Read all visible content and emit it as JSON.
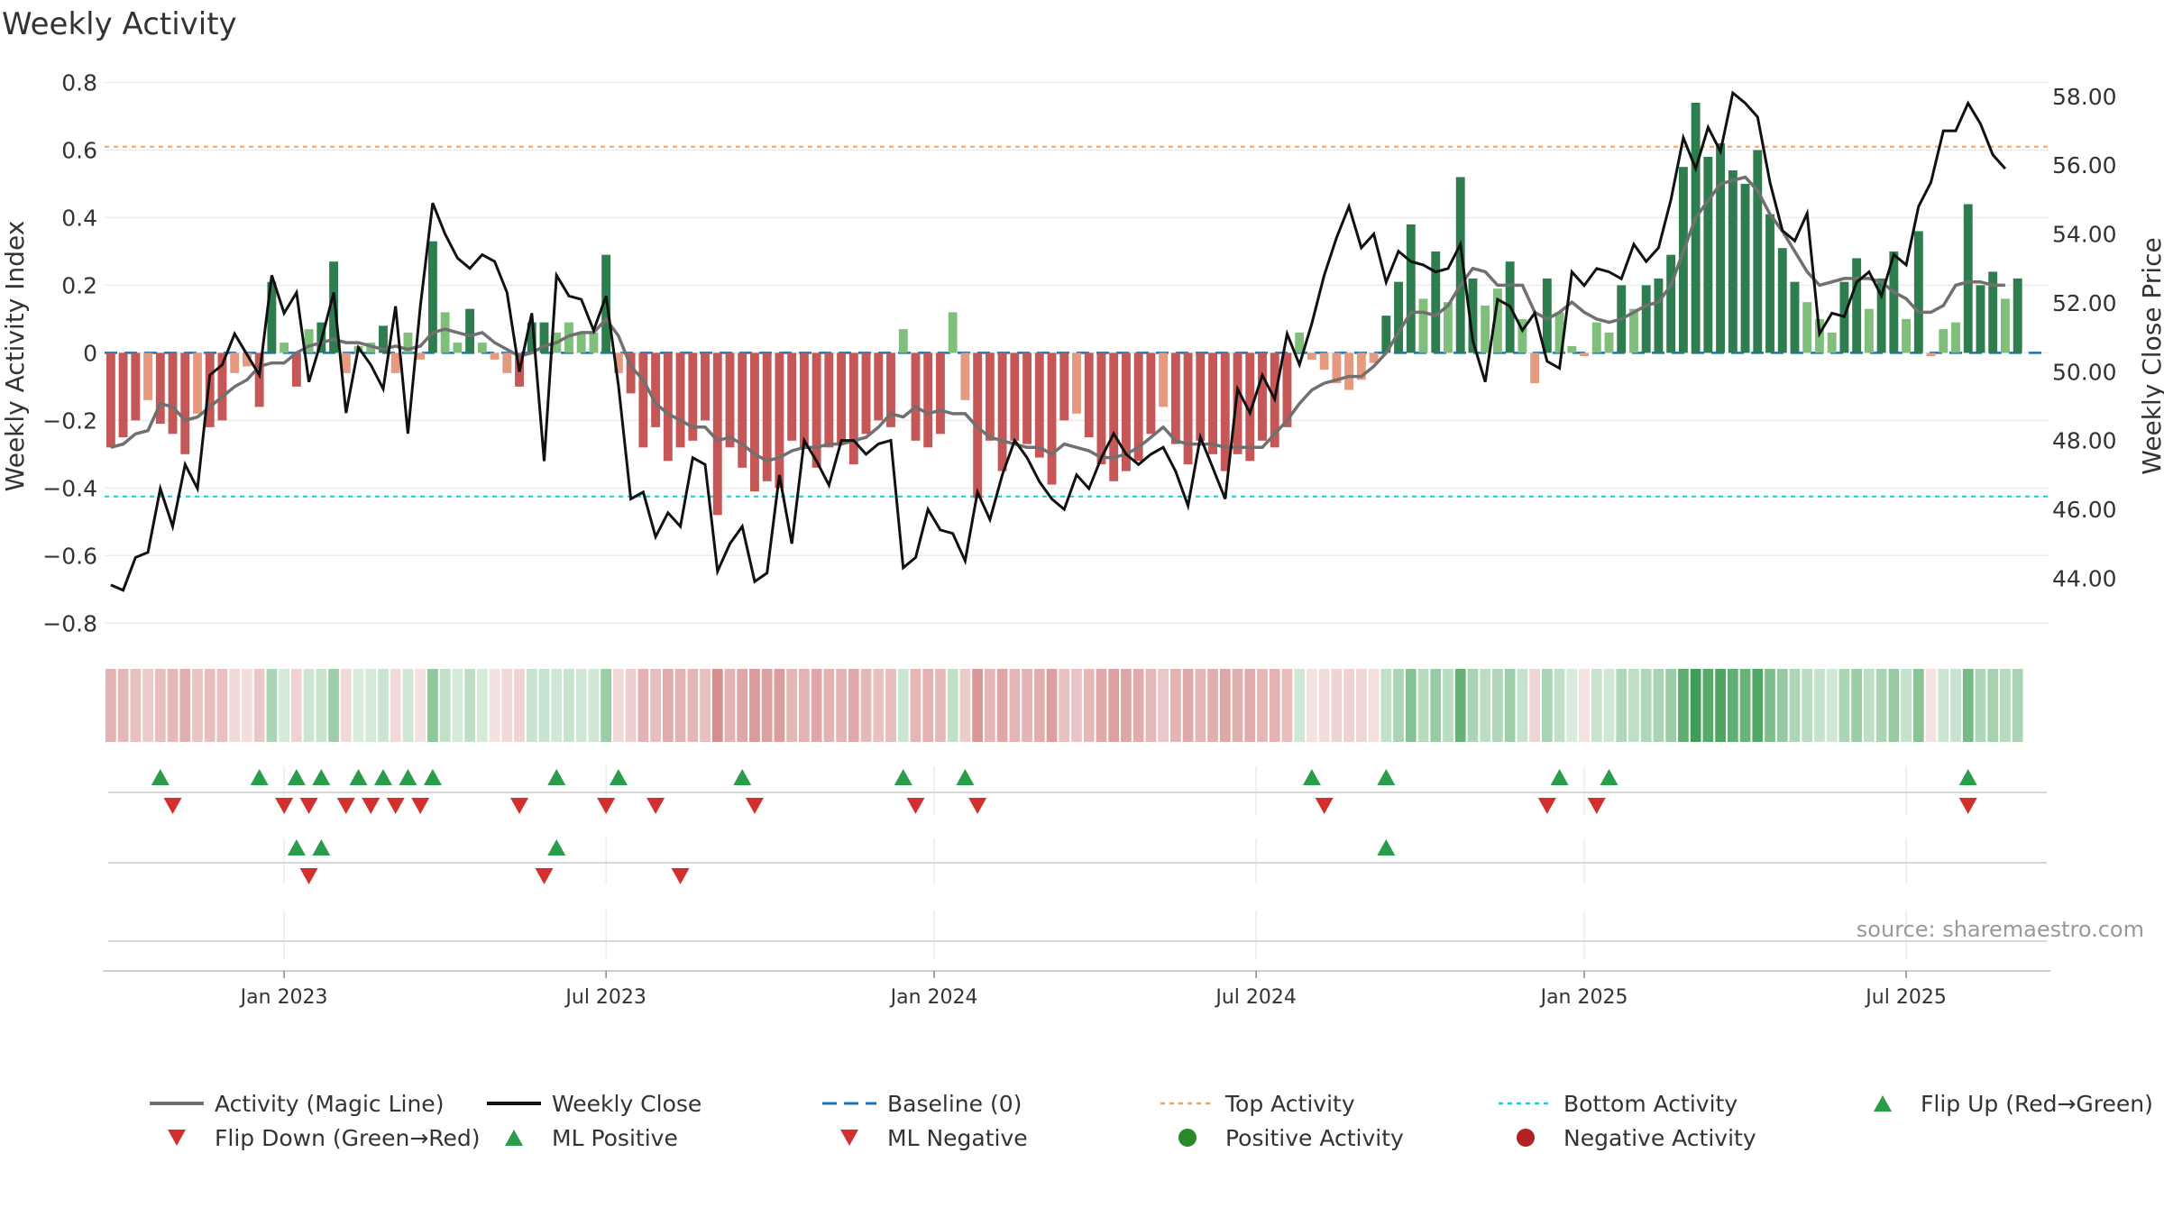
{
  "chart_data": {
    "type": "bar",
    "title": "Weekly Activity",
    "source": "source: sharemaestro.com",
    "ylabel_left": "Weekly Activity Index",
    "ylabel_right": "Weekly Close Price",
    "left_ylim": [
      -0.85,
      0.82
    ],
    "left_yticks": [
      {
        "value": 0.8,
        "label": "0.8"
      },
      {
        "value": 0.6,
        "label": "0.6"
      },
      {
        "value": 0.4,
        "label": "0.4"
      },
      {
        "value": 0.2,
        "label": "0.2"
      },
      {
        "value": 0.0,
        "label": "0"
      },
      {
        "value": -0.2,
        "label": "−0.2"
      },
      {
        "value": -0.4,
        "label": "−0.4"
      },
      {
        "value": -0.6,
        "label": "−0.6"
      },
      {
        "value": -0.8,
        "label": "−0.8"
      }
    ],
    "right_ylim": [
      42.2,
      58.6
    ],
    "right_yticks": [
      {
        "value": 58,
        "label": "58.00"
      },
      {
        "value": 56,
        "label": "56.00"
      },
      {
        "value": 54,
        "label": "54.00"
      },
      {
        "value": 52,
        "label": "52.00"
      },
      {
        "value": 50,
        "label": "50.00"
      },
      {
        "value": 48,
        "label": "48.00"
      },
      {
        "value": 46,
        "label": "46.00"
      },
      {
        "value": 44,
        "label": "44.00"
      }
    ],
    "x_range_weeks": [
      0,
      157
    ],
    "x_ticks": [
      {
        "week": 14.5,
        "label": "Jan 2023"
      },
      {
        "week": 40.5,
        "label": "Jul 2023"
      },
      {
        "week": 67,
        "label": "Jan 2024"
      },
      {
        "week": 93,
        "label": "Jul 2024"
      },
      {
        "week": 119.5,
        "label": "Jan 2025"
      },
      {
        "week": 145.5,
        "label": "Jul 2025"
      }
    ],
    "top_activity": 0.61,
    "bottom_activity": -0.425,
    "colors": {
      "strong_green": "#2e7d4f",
      "light_green": "#7fbf7b",
      "strong_red": "#c65757",
      "light_red": "#e59a7f",
      "magic_line": "#707070",
      "close_line": "#111111",
      "baseline": "#1f6fb4",
      "top_line": "#f4a261",
      "bottom_line": "#26c6da",
      "flip_up": "#2a9d4a",
      "flip_down": "#d32f2f",
      "positive": "#2a8a2a",
      "negative": "#b22222"
    },
    "activity": [
      -0.28,
      -0.25,
      -0.2,
      -0.14,
      -0.21,
      -0.24,
      -0.3,
      -0.18,
      -0.22,
      -0.2,
      -0.06,
      -0.04,
      -0.16,
      0.21,
      0.03,
      -0.1,
      0.07,
      0.09,
      0.27,
      -0.06,
      0.02,
      0.03,
      0.08,
      -0.06,
      0.06,
      -0.02,
      0.33,
      0.12,
      0.03,
      0.13,
      0.03,
      -0.02,
      -0.06,
      -0.1,
      0.09,
      0.09,
      0.06,
      0.09,
      0.06,
      0.06,
      0.29,
      -0.06,
      -0.12,
      -0.28,
      -0.22,
      -0.32,
      -0.28,
      -0.26,
      -0.2,
      -0.48,
      -0.28,
      -0.34,
      -0.41,
      -0.38,
      -0.4,
      -0.26,
      -0.28,
      -0.34,
      -0.28,
      -0.27,
      -0.33,
      -0.24,
      -0.2,
      -0.22,
      0.07,
      -0.26,
      -0.28,
      -0.24,
      0.12,
      -0.14,
      -0.43,
      -0.26,
      -0.35,
      -0.26,
      -0.27,
      -0.31,
      -0.39,
      -0.2,
      -0.18,
      -0.25,
      -0.33,
      -0.38,
      -0.35,
      -0.32,
      -0.24,
      -0.16,
      -0.27,
      -0.33,
      -0.26,
      -0.3,
      -0.35,
      -0.3,
      -0.32,
      -0.26,
      -0.28,
      -0.22,
      0.06,
      -0.02,
      -0.05,
      -0.09,
      -0.11,
      -0.08,
      -0.03,
      0.11,
      0.21,
      0.38,
      0.16,
      0.3,
      0.15,
      0.52,
      0.22,
      0.14,
      0.19,
      0.27,
      0.1,
      -0.09,
      0.22,
      0.12,
      0.02,
      -0.01,
      0.09,
      0.06,
      0.2,
      0.13,
      0.2,
      0.22,
      0.29,
      0.55,
      0.74,
      0.58,
      0.62,
      0.54,
      0.5,
      0.6,
      0.41,
      0.31,
      0.21,
      0.15,
      0.1,
      0.06,
      0.21,
      0.28,
      0.13,
      0.22,
      0.3,
      0.1,
      0.36,
      -0.01,
      0.07,
      0.09,
      0.44,
      0.2,
      0.24,
      0.16,
      0.22
    ],
    "magic_line": [
      -0.28,
      -0.27,
      -0.24,
      -0.23,
      -0.15,
      -0.16,
      -0.2,
      -0.19,
      -0.16,
      -0.13,
      -0.1,
      -0.08,
      -0.04,
      -0.03,
      -0.03,
      0.0,
      0.02,
      0.03,
      0.04,
      0.03,
      0.03,
      0.02,
      0.01,
      0.02,
      0.01,
      0.02,
      0.06,
      0.07,
      0.06,
      0.05,
      0.06,
      0.03,
      0.01,
      -0.01,
      0.0,
      0.02,
      0.03,
      0.05,
      0.06,
      0.06,
      0.1,
      0.05,
      -0.04,
      -0.08,
      -0.15,
      -0.18,
      -0.2,
      -0.22,
      -0.22,
      -0.26,
      -0.25,
      -0.27,
      -0.3,
      -0.32,
      -0.31,
      -0.29,
      -0.28,
      -0.28,
      -0.27,
      -0.27,
      -0.26,
      -0.25,
      -0.22,
      -0.18,
      -0.19,
      -0.16,
      -0.18,
      -0.17,
      -0.18,
      -0.18,
      -0.22,
      -0.25,
      -0.26,
      -0.27,
      -0.28,
      -0.28,
      -0.3,
      -0.27,
      -0.28,
      -0.29,
      -0.31,
      -0.31,
      -0.3,
      -0.28,
      -0.25,
      -0.22,
      -0.26,
      -0.27,
      -0.27,
      -0.27,
      -0.28,
      -0.28,
      -0.28,
      -0.28,
      -0.24,
      -0.2,
      -0.15,
      -0.11,
      -0.09,
      -0.08,
      -0.07,
      -0.07,
      -0.04,
      0.0,
      0.06,
      0.12,
      0.12,
      0.11,
      0.14,
      0.2,
      0.25,
      0.24,
      0.2,
      0.2,
      0.2,
      0.12,
      0.1,
      0.12,
      0.15,
      0.12,
      0.1,
      0.09,
      0.1,
      0.12,
      0.14,
      0.15,
      0.2,
      0.3,
      0.4,
      0.45,
      0.5,
      0.51,
      0.52,
      0.48,
      0.41,
      0.36,
      0.3,
      0.24,
      0.2,
      0.21,
      0.22,
      0.22,
      0.22,
      0.21,
      0.18,
      0.16,
      0.12,
      0.12,
      0.14,
      0.2,
      0.21,
      0.21,
      0.2,
      0.2
    ],
    "weekly_close": [
      43.8,
      43.65,
      44.6,
      44.75,
      46.6,
      45.5,
      47.3,
      46.6,
      49.9,
      50.2,
      51.1,
      50.5,
      49.9,
      52.8,
      51.7,
      52.3,
      49.7,
      50.9,
      52.3,
      48.8,
      50.7,
      50.2,
      49.5,
      51.9,
      48.2,
      51.9,
      54.9,
      54.0,
      53.3,
      53.0,
      53.4,
      53.2,
      52.3,
      50.0,
      51.7,
      47.4,
      52.8,
      52.2,
      52.1,
      51.2,
      52.2,
      49.6,
      46.3,
      46.5,
      45.2,
      45.9,
      45.5,
      47.5,
      47.3,
      44.2,
      45.0,
      45.5,
      43.9,
      44.15,
      47.0,
      45.0,
      48.0,
      47.4,
      46.7,
      48.0,
      48.0,
      47.6,
      47.9,
      48.0,
      44.3,
      44.6,
      46.0,
      45.4,
      45.3,
      44.5,
      46.5,
      45.7,
      47.0,
      48.0,
      47.5,
      46.8,
      46.3,
      46.0,
      47.0,
      46.6,
      47.5,
      48.2,
      47.6,
      47.3,
      47.6,
      47.8,
      47.1,
      46.1,
      48.1,
      47.2,
      46.3,
      49.5,
      48.8,
      49.9,
      49.2,
      51.1,
      50.2,
      51.4,
      52.8,
      53.9,
      54.8,
      53.6,
      54.0,
      52.6,
      53.5,
      53.2,
      53.1,
      52.9,
      53.0,
      53.7,
      50.9,
      49.7,
      52.1,
      51.9,
      51.2,
      51.7,
      50.3,
      50.1,
      52.9,
      52.5,
      53.0,
      52.9,
      52.7,
      53.7,
      53.2,
      53.6,
      55.0,
      56.8,
      55.9,
      57.1,
      56.4,
      58.1,
      57.8,
      57.4,
      55.5,
      54.1,
      53.8,
      54.6,
      51.1,
      51.7,
      51.6,
      52.6,
      52.9,
      52.2,
      53.4,
      53.1,
      54.8,
      55.5,
      57.0,
      57.0,
      57.8,
      57.2,
      56.3,
      55.9
    ],
    "flip_up_weeks": [
      4,
      12,
      15,
      17,
      20,
      22,
      24,
      26,
      36,
      41,
      51,
      64,
      69,
      97,
      103,
      117,
      121,
      150
    ],
    "flip_down_weeks": [
      5,
      14,
      16,
      19,
      21,
      23,
      25,
      33,
      40,
      44,
      52,
      65,
      70,
      98,
      116,
      120,
      150
    ],
    "ml_positive_weeks": [
      15,
      17,
      36,
      103
    ],
    "ml_negative_weeks": [
      16,
      35,
      46
    ],
    "legend": [
      {
        "label": "Activity (Magic Line)",
        "kind": "line-gray"
      },
      {
        "label": "Weekly Close",
        "kind": "line-black"
      },
      {
        "label": "Baseline (0)",
        "kind": "dash-blue"
      },
      {
        "label": "Top Activity",
        "kind": "dot-orange"
      },
      {
        "label": "Bottom Activity",
        "kind": "dot-cyan"
      },
      {
        "label": "Flip Up (Red→Green)",
        "kind": "tri-up"
      },
      {
        "label": "Flip Down (Green→Red)",
        "kind": "tri-down"
      },
      {
        "label": "ML Positive",
        "kind": "tri-up"
      },
      {
        "label": "ML Negative",
        "kind": "tri-down"
      },
      {
        "label": "Positive Activity",
        "kind": "dot-green"
      },
      {
        "label": "Negative Activity",
        "kind": "dot-red"
      }
    ]
  }
}
